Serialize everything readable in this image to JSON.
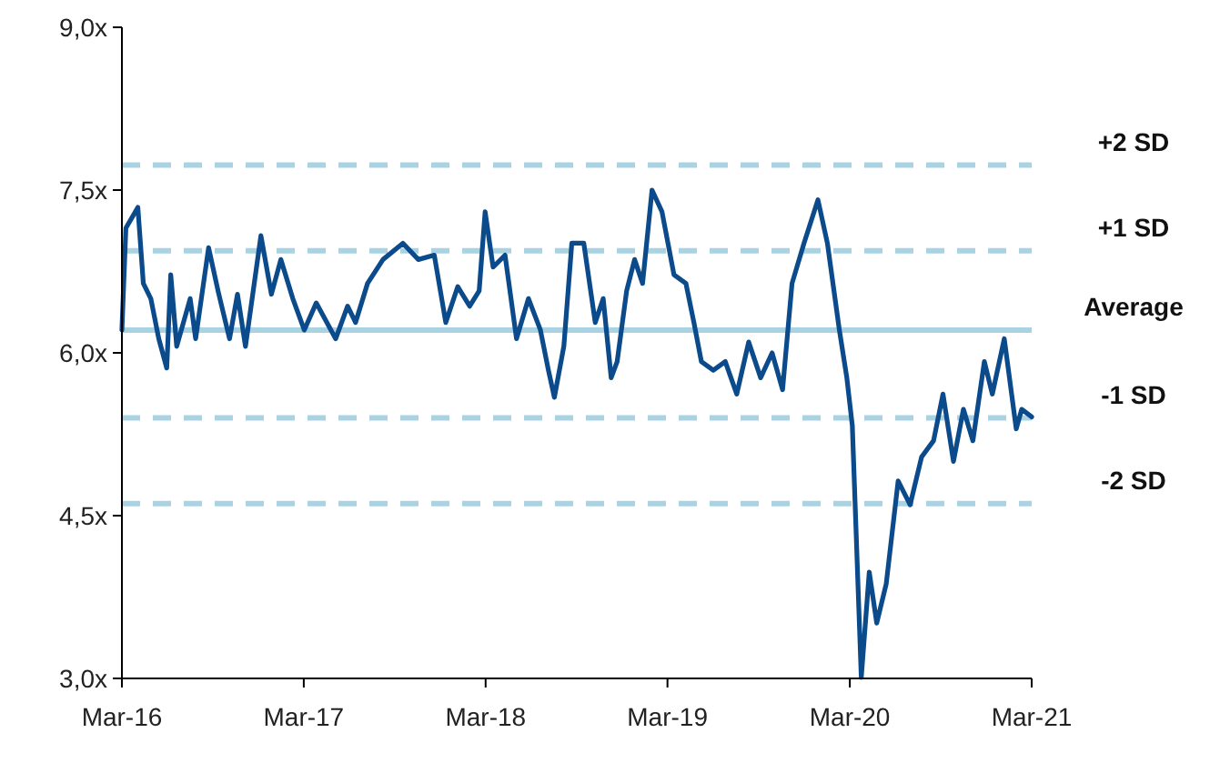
{
  "chart_data": {
    "type": "line",
    "x": [
      "2016-03-01",
      "2016-03-09",
      "2016-04-02",
      "2016-04-13",
      "2016-04-28",
      "2016-05-14",
      "2016-05-30",
      "2016-06-07",
      "2016-06-19",
      "2016-07-16",
      "2016-07-27",
      "2016-08-22",
      "2016-09-10",
      "2016-10-03",
      "2016-10-19",
      "2016-11-04",
      "2016-12-05",
      "2016-12-26",
      "2017-01-14",
      "2017-02-07",
      "2017-03-02",
      "2017-03-26",
      "2017-05-04",
      "2017-05-28",
      "2017-06-13",
      "2017-07-07",
      "2017-08-07",
      "2017-09-16",
      "2017-10-17",
      "2017-11-18",
      "2017-12-11",
      "2018-01-04",
      "2018-01-28",
      "2018-02-16",
      "2018-02-28",
      "2018-03-16",
      "2018-04-09",
      "2018-05-02",
      "2018-05-26",
      "2018-06-19",
      "2018-07-05",
      "2018-07-17",
      "2018-08-05",
      "2018-08-21",
      "2018-09-14",
      "2018-10-07",
      "2018-10-23",
      "2018-11-08",
      "2018-11-20",
      "2018-12-09",
      "2018-12-25",
      "2019-01-10",
      "2019-01-29",
      "2019-02-18",
      "2019-03-14",
      "2019-04-07",
      "2019-04-23",
      "2019-05-08",
      "2019-06-01",
      "2019-06-25",
      "2019-07-18",
      "2019-08-11",
      "2019-09-04",
      "2019-09-27",
      "2019-10-18",
      "2019-11-06",
      "2019-11-30",
      "2019-12-28",
      "2020-01-16",
      "2020-02-09",
      "2020-02-24",
      "2020-03-06",
      "2020-03-24",
      "2020-04-09",
      "2020-04-24",
      "2020-05-13",
      "2020-06-06",
      "2020-06-30",
      "2020-07-23",
      "2020-08-16",
      "2020-09-04",
      "2020-09-25",
      "2020-10-15",
      "2020-11-03",
      "2020-11-26",
      "2020-12-12",
      "2021-01-05",
      "2021-01-29",
      "2021-02-09",
      "2021-03-01"
    ],
    "series": [
      {
        "color": "#0b4a8b",
        "values": [
          6.21,
          7.15,
          7.34,
          6.64,
          6.5,
          6.13,
          5.86,
          6.72,
          6.06,
          6.5,
          6.13,
          6.97,
          6.57,
          6.13,
          6.54,
          6.06,
          7.08,
          6.54,
          6.86,
          6.5,
          6.21,
          6.46,
          6.13,
          6.43,
          6.28,
          6.64,
          6.86,
          7.01,
          6.86,
          6.9,
          6.28,
          6.61,
          6.43,
          6.57,
          7.3,
          6.79,
          6.9,
          6.13,
          6.5,
          6.21,
          5.84,
          5.59,
          6.06,
          7.01,
          7.01,
          6.28,
          6.5,
          5.77,
          5.92,
          6.57,
          6.86,
          6.64,
          7.5,
          7.3,
          6.72,
          6.64,
          6.28,
          5.92,
          5.84,
          5.92,
          5.62,
          6.1,
          5.77,
          6.0,
          5.66,
          6.64,
          7.01,
          7.41,
          7.01,
          6.21,
          5.77,
          5.33,
          3.01,
          3.98,
          3.51,
          3.87,
          4.82,
          4.6,
          5.04,
          5.19,
          5.62,
          5.0,
          5.48,
          5.19,
          5.92,
          5.62,
          6.13,
          5.3,
          5.48,
          5.41
        ]
      }
    ],
    "xlim": [
      "2016-03-01",
      "2021-03-01"
    ],
    "xticks": [
      {
        "value": "2016-03-01",
        "label": "Mar-16"
      },
      {
        "value": "2017-03-01",
        "label": "Mar-17"
      },
      {
        "value": "2018-03-01",
        "label": "Mar-18"
      },
      {
        "value": "2019-03-01",
        "label": "Mar-19"
      },
      {
        "value": "2020-03-01",
        "label": "Mar-20"
      },
      {
        "value": "2021-03-01",
        "label": "Mar-21"
      }
    ],
    "ylim": [
      3,
      9
    ],
    "yticks": [
      {
        "value": 3,
        "label": "3,0x"
      },
      {
        "value": 4.5,
        "label": "4,5x"
      },
      {
        "value": 6,
        "label": "6,0x"
      },
      {
        "value": 7.5,
        "label": "7,5x"
      },
      {
        "value": 9,
        "label": "9,0x"
      }
    ],
    "ref_lines": [
      {
        "axis": "y",
        "value": 7.73,
        "label": "+2 SD",
        "color": "#a9d3e3",
        "line_style": "dashed"
      },
      {
        "axis": "y",
        "value": 6.94,
        "label": "+1 SD",
        "color": "#a9d3e3",
        "line_style": "dashed"
      },
      {
        "axis": "y",
        "value": 6.21,
        "label": "Average",
        "color": "#a9d3e3",
        "line_style": "solid"
      },
      {
        "axis": "y",
        "value": 5.4,
        "label": "-1 SD",
        "color": "#a9d3e3",
        "line_style": "dashed"
      },
      {
        "axis": "y",
        "value": 4.61,
        "label": "-2 SD",
        "color": "#a9d3e3",
        "line_style": "dashed"
      }
    ],
    "grid": false
  }
}
